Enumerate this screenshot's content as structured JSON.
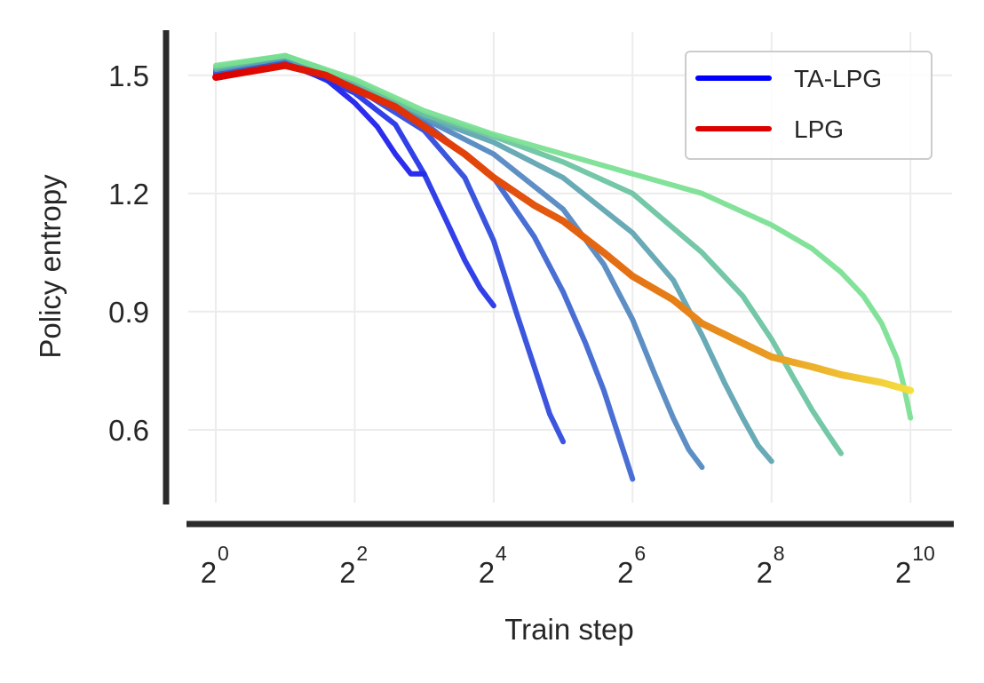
{
  "chart_data": {
    "type": "line",
    "xlabel": "Train step",
    "ylabel": "Policy entropy",
    "x_scale": "log2",
    "xlim": [
      0.76,
      1550
    ],
    "ylim": [
      0.415,
      1.61
    ],
    "grid": true,
    "legend_position": "top-right",
    "x_ticks": [
      {
        "value": 1,
        "base": "2",
        "exp": "0"
      },
      {
        "value": 4,
        "base": "2",
        "exp": "2"
      },
      {
        "value": 16,
        "base": "2",
        "exp": "4"
      },
      {
        "value": 64,
        "base": "2",
        "exp": "6"
      },
      {
        "value": 256,
        "base": "2",
        "exp": "8"
      },
      {
        "value": 1024,
        "base": "2",
        "exp": "10"
      }
    ],
    "y_ticks": [
      {
        "value": 1.5,
        "label": "1.5"
      },
      {
        "value": 1.2,
        "label": "1.2"
      },
      {
        "value": 0.9,
        "label": "0.9"
      },
      {
        "value": 0.6,
        "label": "0.6"
      }
    ],
    "legend": [
      {
        "label": "TA-LPG",
        "color": "#0000ff"
      },
      {
        "label": "LPG",
        "color": "#dd0000"
      }
    ],
    "series": [
      {
        "group": "TA-LPG",
        "color": "#1a1aee",
        "x": [
          1,
          2,
          3,
          4,
          5,
          6,
          7,
          8
        ],
        "y": [
          1.505,
          1.53,
          1.49,
          1.43,
          1.37,
          1.3,
          1.25,
          1.25
        ]
      },
      {
        "group": "TA-LPG",
        "color": "#1f30e6",
        "x": [
          1,
          2,
          4,
          6,
          8,
          10,
          12,
          14,
          16
        ],
        "y": [
          1.505,
          1.535,
          1.455,
          1.375,
          1.25,
          1.13,
          1.03,
          0.96,
          0.915
        ]
      },
      {
        "group": "TA-LPG",
        "color": "#2a46dc",
        "x": [
          1,
          2,
          4,
          8,
          12,
          16,
          20,
          24,
          28,
          32
        ],
        "y": [
          1.51,
          1.54,
          1.47,
          1.36,
          1.24,
          1.08,
          0.9,
          0.76,
          0.64,
          0.57
        ]
      },
      {
        "group": "TA-LPG",
        "color": "#3a62d0",
        "x": [
          1,
          2,
          4,
          8,
          16,
          24,
          32,
          40,
          48,
          56,
          64
        ],
        "y": [
          1.51,
          1.54,
          1.47,
          1.38,
          1.24,
          1.09,
          0.95,
          0.82,
          0.7,
          0.58,
          0.475
        ]
      },
      {
        "group": "TA-LPG",
        "color": "#4f86c0",
        "x": [
          1,
          2,
          4,
          8,
          16,
          32,
          48,
          64,
          80,
          96,
          112,
          128
        ],
        "y": [
          1.515,
          1.545,
          1.475,
          1.39,
          1.3,
          1.16,
          1.02,
          0.88,
          0.74,
          0.63,
          0.55,
          0.505
        ]
      },
      {
        "group": "TA-LPG",
        "color": "#5ba3b0",
        "x": [
          1,
          2,
          4,
          8,
          16,
          32,
          64,
          96,
          128,
          160,
          192,
          224,
          256
        ],
        "y": [
          1.515,
          1.545,
          1.48,
          1.395,
          1.33,
          1.24,
          1.1,
          0.98,
          0.84,
          0.72,
          0.63,
          0.56,
          0.52
        ]
      },
      {
        "group": "TA-LPG",
        "color": "#68c2a0",
        "x": [
          1,
          2,
          4,
          8,
          16,
          32,
          64,
          128,
          192,
          256,
          320,
          384,
          448,
          512
        ],
        "y": [
          1.52,
          1.55,
          1.485,
          1.4,
          1.345,
          1.28,
          1.2,
          1.05,
          0.94,
          0.83,
          0.73,
          0.65,
          0.59,
          0.54
        ]
      },
      {
        "group": "TA-LPG",
        "color": "#78e090",
        "x": [
          1,
          2,
          4,
          8,
          16,
          32,
          64,
          128,
          256,
          384,
          512,
          640,
          768,
          896,
          960,
          1024
        ],
        "y": [
          1.525,
          1.55,
          1.49,
          1.41,
          1.35,
          1.3,
          1.25,
          1.2,
          1.12,
          1.06,
          1.0,
          0.94,
          0.87,
          0.78,
          0.71,
          0.63
        ]
      },
      {
        "group": "LPG",
        "color": "#dd1a00",
        "x": [
          1,
          2,
          3,
          4,
          6,
          8,
          12,
          16,
          24,
          32,
          48,
          64,
          96,
          128,
          192,
          256,
          384,
          512,
          768,
          1024
        ],
        "y": [
          1.495,
          1.525,
          1.5,
          1.465,
          1.42,
          1.37,
          1.3,
          1.24,
          1.17,
          1.13,
          1.05,
          0.99,
          0.93,
          0.87,
          0.82,
          0.785,
          0.76,
          0.74,
          0.72,
          0.7
        ]
      }
    ]
  }
}
